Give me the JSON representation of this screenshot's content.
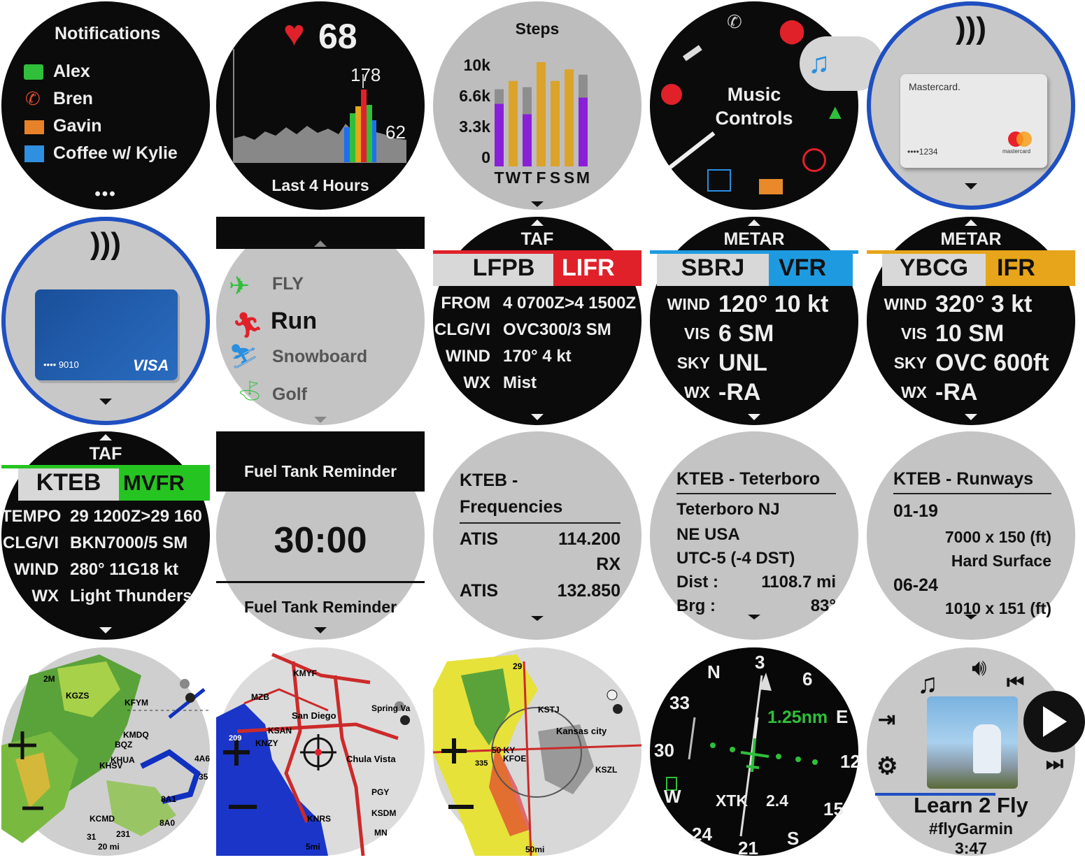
{
  "colors": {
    "accent_blue": "#1f4fc0",
    "lifr": "#e0212a",
    "vfr": "#1e9be0",
    "ifr": "#e6a51a",
    "mvfr": "#26c421",
    "purple": "#8a1fd8",
    "gold": "#dba32a",
    "heart": "#e0212a"
  },
  "notifications": {
    "title": "Notifications",
    "items": [
      {
        "icon": "message-icon",
        "label": "Alex"
      },
      {
        "icon": "missed-call-icon",
        "label": "Bren"
      },
      {
        "icon": "email-icon",
        "label": "Gavin"
      },
      {
        "icon": "calendar-icon",
        "label": "Coffee w/ Kylie"
      }
    ],
    "more": "•••"
  },
  "heart_rate": {
    "value": "68",
    "max": "178",
    "min": "62",
    "caption": "Last 4 Hours"
  },
  "steps": {
    "title": "Steps",
    "yticks": [
      "10k",
      "6.6k",
      "3.3k",
      "0"
    ],
    "chart_data": {
      "type": "bar",
      "categories": [
        "T",
        "W",
        "T",
        "F",
        "S",
        "S",
        "M"
      ],
      "series": [
        {
          "values": [
            6000,
            8200,
            5000,
            10000,
            8200,
            9300,
            6600
          ]
        },
        {
          "values": [
            7400,
            7400,
            7600,
            7400,
            7400,
            8300,
            8800
          ]
        }
      ],
      "ylim": [
        0,
        11000
      ]
    }
  },
  "controls": {
    "title": "Music\nControls",
    "line1": "Music",
    "line2": "Controls"
  },
  "mastercard": {
    "brand": "Mastercard.",
    "number": "••••1234",
    "logo_text": "mastercard"
  },
  "visa": {
    "number": "•••• 9010",
    "brand": "VISA"
  },
  "activities": {
    "items": [
      "FLY",
      "Run",
      "Snowboard",
      "Golf"
    ]
  },
  "taf_lfpb": {
    "header": "TAF",
    "station": "LFPB",
    "category": "LIFR",
    "rows": [
      {
        "k": "FROM",
        "v": "4 0700Z>4 1500Z"
      },
      {
        "k": "CLG/VI",
        "v": "OVC300/3 SM"
      },
      {
        "k": "WIND",
        "v": "170° 4 kt"
      },
      {
        "k": "WX",
        "v": "Mist"
      }
    ]
  },
  "metar_sbrj": {
    "header": "METAR",
    "station": "SBRJ",
    "category": "VFR",
    "rows": [
      {
        "k": "WIND",
        "v": "120° 10 kt"
      },
      {
        "k": "VIS",
        "v": "6 SM"
      },
      {
        "k": "SKY",
        "v": "UNL"
      },
      {
        "k": "WX",
        "v": "-RA"
      }
    ]
  },
  "metar_ybcg": {
    "header": "METAR",
    "station": "YBCG",
    "category": "IFR",
    "rows": [
      {
        "k": "WIND",
        "v": "320° 3 kt"
      },
      {
        "k": "VIS",
        "v": "10 SM"
      },
      {
        "k": "SKY",
        "v": "OVC 600ft"
      },
      {
        "k": "WX",
        "v": "-RA"
      }
    ]
  },
  "taf_kteb": {
    "header": "TAF",
    "station": "KTEB",
    "category": "MVFR",
    "rows": [
      {
        "k": "TEMPO",
        "v": "29 1200Z>29 160"
      },
      {
        "k": "CLG/VI",
        "v": "BKN7000/5 SM"
      },
      {
        "k": "WIND",
        "v": "280° 11G18 kt"
      },
      {
        "k": "WX",
        "v": "Light Thunders"
      }
    ]
  },
  "fuel": {
    "title": "Fuel Tank Reminder",
    "time": "30:00",
    "next": "Fuel Tank Reminder"
  },
  "freq": {
    "title1": "KTEB -",
    "title2": "Frequencies",
    "rows": [
      {
        "k": "ATIS",
        "v": "114.200"
      },
      {
        "k": "",
        "v": "RX"
      },
      {
        "k": "ATIS",
        "v": "132.850"
      }
    ]
  },
  "airport": {
    "title": "KTEB - Teterboro",
    "lines": [
      "Teterboro NJ",
      "NE USA",
      "UTC-5 (-4 DST)"
    ],
    "dist_k": "Dist :",
    "dist_v": "1108.7 mi",
    "brg_k": "Brg :",
    "brg_v": "83°"
  },
  "runways": {
    "title": "KTEB - Runways",
    "r1": "01-19",
    "r1a": "7000 x 150 (ft)",
    "r1b": "Hard Surface",
    "r2": "06-24",
    "r2a": "1010 x 151 (ft)"
  },
  "map1": {
    "labels": [
      "2M",
      "KGZS",
      "KFYM",
      "KMDQ",
      "KHUA",
      "BQZ",
      "KHSV",
      "4A6",
      "8A1",
      "KCMD",
      "8A0",
      "35",
      "31",
      "231"
    ],
    "scale": "20 mi"
  },
  "map2": {
    "labels": [
      "KMYF",
      "MZB",
      "San Diego",
      "Spring Va",
      "KSAN",
      "KNZY",
      "209",
      "Chula Vista",
      "PGY",
      "KNRS",
      "KSDM",
      "MN"
    ],
    "scale": "5mi"
  },
  "map3": {
    "labels": [
      "29",
      "KSTJ",
      "Kansas city",
      "50 KY",
      "KFOE",
      "335",
      "KSZL"
    ],
    "scale": "50mi"
  },
  "hsi": {
    "dist": "1.25nm",
    "xtk_label": "XTK",
    "xtk_value": "2.4",
    "card": [
      "N",
      "3",
      "6",
      "E",
      "12",
      "15",
      "S",
      "21",
      "24",
      "W",
      "30",
      "33"
    ]
  },
  "music": {
    "title": "Learn 2 Fly",
    "artist": "#flyGarmin",
    "time": "3:47"
  }
}
